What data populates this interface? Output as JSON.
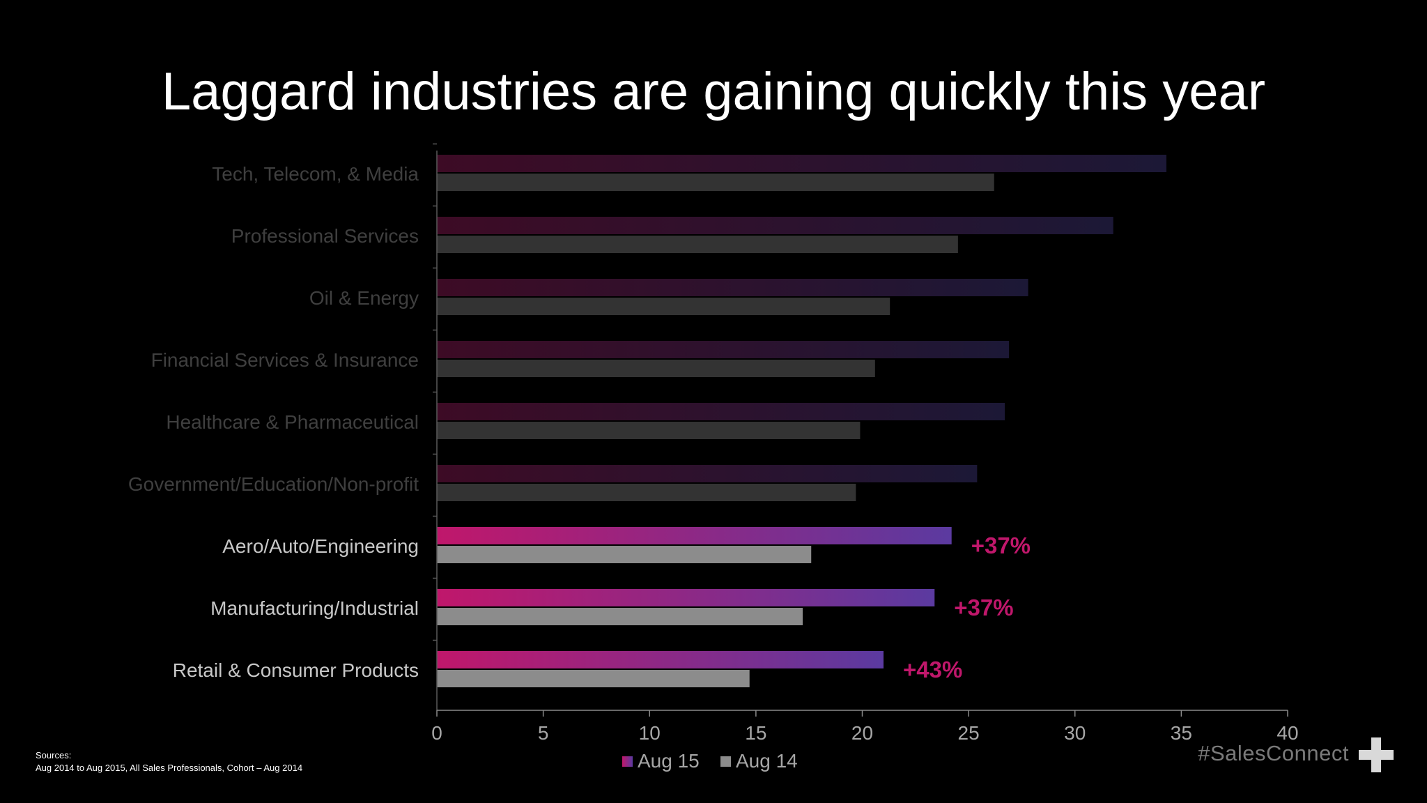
{
  "slide": {
    "title": "Laggard industries are gaining quickly this year",
    "sources_label": "Sources:",
    "sources_text": "Aug 2014 to Aug 2015, All Sales Professionals, Cohort – Aug 2014",
    "hashtag": "#SalesConnect"
  },
  "chart_data": {
    "type": "bar",
    "orientation": "horizontal",
    "title": "",
    "xlabel": "",
    "ylabel": "",
    "xlim": [
      0,
      40
    ],
    "x_ticks": [
      "0",
      "5",
      "10",
      "15",
      "20",
      "25",
      "30",
      "35",
      "40"
    ],
    "categories": [
      "Tech, Telecom, & Media",
      "Professional Services",
      "Oil & Energy",
      "Financial Services & Insurance",
      "Healthcare & Pharmaceutical",
      "Government/Education/Non-profit",
      "Aero/Auto/Engineering",
      "Manufacturing/Industrial",
      "Retail & Consumer Products"
    ],
    "highlighted": [
      false,
      false,
      false,
      false,
      false,
      false,
      true,
      true,
      true
    ],
    "series": [
      {
        "name": "Aug 15",
        "color": "#c0176b",
        "values": [
          34.3,
          31.8,
          27.8,
          26.9,
          26.7,
          25.4,
          24.2,
          23.4,
          21.0
        ]
      },
      {
        "name": "Aug 14",
        "color": "#8c8c8c",
        "values": [
          26.2,
          24.5,
          21.3,
          20.6,
          19.9,
          19.7,
          17.6,
          17.2,
          14.7
        ]
      }
    ],
    "annotations": [
      "",
      "",
      "",
      "",
      "",
      "",
      "+37%",
      "+37%",
      "+43%"
    ],
    "annotation_color": "#c0176b",
    "legend": "bottom-center",
    "grid": false
  }
}
